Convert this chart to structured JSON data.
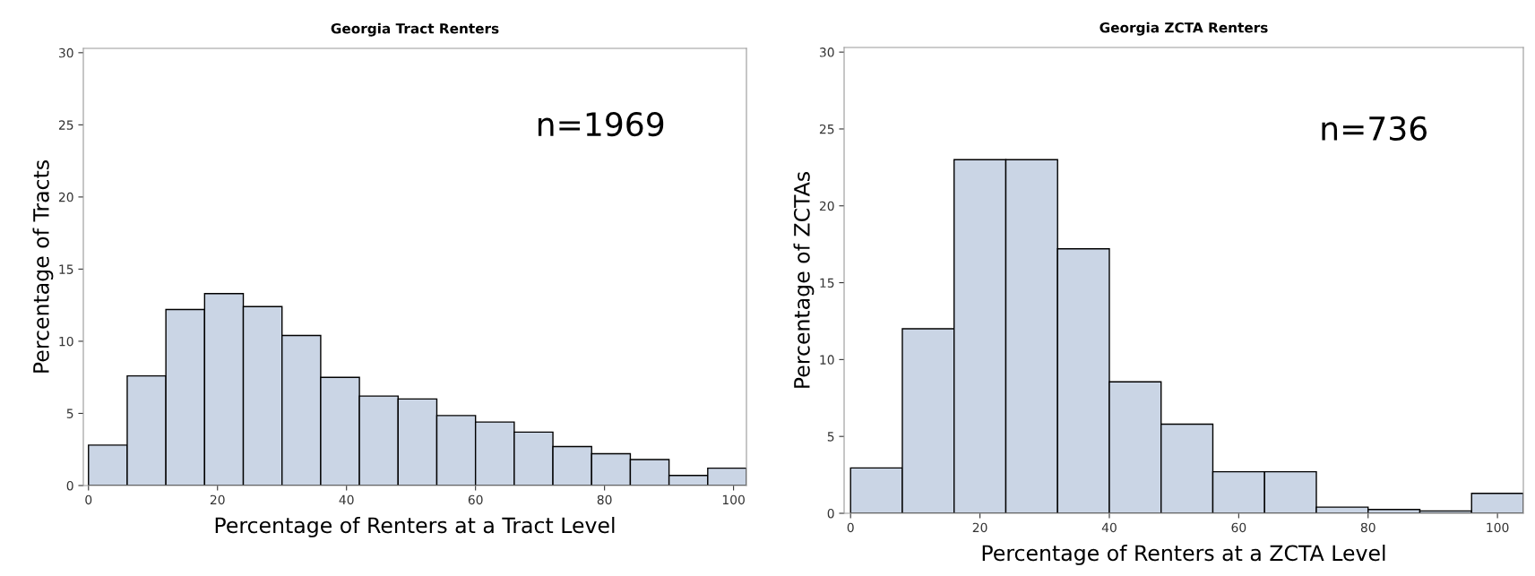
{
  "chart_data": [
    {
      "type": "histogram",
      "title": "Georgia Tract Renters",
      "xlabel": "Percentage of Renters at a Tract Level",
      "ylabel": "Percentage of Tracts",
      "annotations": [
        "n=1969"
      ],
      "bins": [
        0,
        6,
        12,
        18,
        24,
        30,
        36,
        42,
        48,
        54,
        60,
        66,
        72,
        78,
        84,
        90,
        96,
        102
      ],
      "values": [
        2.8,
        7.6,
        12.2,
        13.3,
        12.4,
        10.4,
        7.5,
        6.2,
        6.0,
        4.85,
        4.4,
        3.7,
        2.7,
        2.2,
        1.8,
        0.7,
        1.2
      ],
      "color": "#cad5e5",
      "xlim": [
        -0.8,
        102
      ],
      "ylim": [
        0,
        30.3
      ],
      "xticks": [
        0,
        20,
        40,
        60,
        80,
        100
      ],
      "yticks": [
        0,
        5,
        10,
        15,
        20,
        25,
        30
      ],
      "grid": false
    },
    {
      "type": "histogram",
      "title": "Georgia ZCTA Renters",
      "xlabel": "Percentage of Renters at a ZCTA Level",
      "ylabel": "Percentage of ZCTAs",
      "annotations": [
        "n=736"
      ],
      "bins": [
        0,
        8,
        16,
        24,
        32,
        40,
        48,
        56,
        64,
        72,
        80,
        88,
        96,
        104
      ],
      "values": [
        2.95,
        12.0,
        23.0,
        23.0,
        17.2,
        8.55,
        5.8,
        2.7,
        2.7,
        0.4,
        0.25,
        0.15,
        1.3
      ],
      "color": "#cad5e5",
      "xlim": [
        -1,
        104
      ],
      "ylim": [
        0,
        30.3
      ],
      "xticks": [
        0,
        20,
        40,
        60,
        80,
        100
      ],
      "yticks": [
        0,
        5,
        10,
        15,
        20,
        25,
        30
      ],
      "grid": false
    }
  ]
}
